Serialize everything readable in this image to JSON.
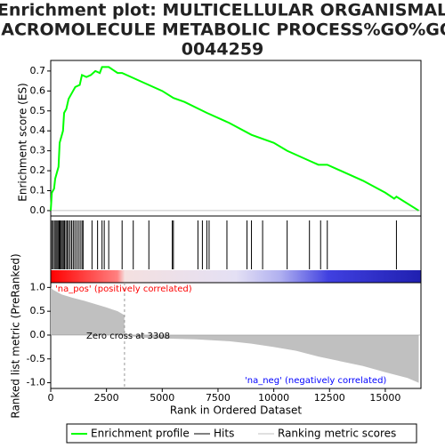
{
  "chart_data": {
    "type": "gsea",
    "title": [
      "Enrichment plot: MULTICELLULAR ORGANISMAL",
      "MACROMOLECULE METABOLIC PROCESS%GO%GO:",
      "0044259"
    ],
    "x_label": "Rank in Ordered Dataset",
    "y_label": "Enrichment score (ES)",
    "y2_label": "Ranked list metric (PreRanked)",
    "xlim": [
      0,
      16600
    ],
    "xticks": [
      0,
      2500,
      5000,
      7500,
      10000,
      12500,
      15000
    ],
    "ylim": [
      -0.027,
      0.753
    ],
    "yticks": [
      {
        "value": 0,
        "label": "0.0"
      },
      0.1,
      0.2,
      0.3,
      0.4,
      0.5,
      0.6,
      0.7
    ],
    "y2lim": [
      -1.12,
      1.1
    ],
    "y2ticks": [
      {
        "value": 1,
        "label": "1.0"
      },
      0.5,
      {
        "value": 0,
        "label": "0.0"
      },
      -0.5,
      {
        "value": -1,
        "label": "-1.0"
      }
    ],
    "series": [
      {
        "name": "Enrichment profile",
        "color": "#00ff00",
        "x": [
          0,
          50,
          150,
          200,
          300,
          350,
          400,
          500,
          550,
          600,
          700,
          800,
          950,
          1100,
          1300,
          1400,
          1600,
          1800,
          2000,
          2200,
          2300,
          2600,
          3000,
          3200,
          4000,
          5000,
          5500,
          6000,
          7000,
          8000,
          9000,
          10000,
          10600,
          11600,
          12000,
          12400,
          13000,
          14000,
          15000,
          15400,
          15500,
          16500
        ],
        "values": [
          0,
          0.09,
          0.11,
          0.16,
          0.2,
          0.22,
          0.34,
          0.38,
          0.4,
          0.49,
          0.51,
          0.56,
          0.59,
          0.62,
          0.63,
          0.68,
          0.67,
          0.68,
          0.7,
          0.69,
          0.72,
          0.72,
          0.69,
          0.69,
          0.65,
          0.6,
          0.565,
          0.545,
          0.49,
          0.44,
          0.38,
          0.34,
          0.3,
          0.25,
          0.23,
          0.23,
          0.2,
          0.15,
          0.09,
          0.06,
          0.07,
          0
        ]
      },
      {
        "name": "Hits",
        "color": "#000000",
        "x": [
          50,
          110,
          170,
          230,
          280,
          330,
          380,
          420,
          470,
          520,
          570,
          620,
          680,
          740,
          800,
          870,
          940,
          1010,
          1080,
          1160,
          1240,
          1320,
          1400,
          1450,
          1850,
          2100,
          2300,
          2400,
          2600,
          3200,
          3700,
          4400,
          5450,
          5500,
          6600,
          6800,
          7000,
          7100,
          7900,
          8800,
          9000,
          9500,
          10600,
          11600,
          12100,
          12400,
          15500
        ]
      },
      {
        "name": "Ranking metric scores",
        "color": "#c0c0c0",
        "x": [
          0,
          100,
          500,
          1000,
          1500,
          2000,
          2500,
          3000,
          3300,
          3308,
          4000,
          5000,
          6500,
          8000,
          9000,
          10000,
          11000,
          12000,
          13000,
          14000,
          15000,
          16000,
          16500
        ],
        "values": [
          1.0,
          0.95,
          0.85,
          0.78,
          0.72,
          0.65,
          0.58,
          0.5,
          0.42,
          0,
          -0.05,
          -0.07,
          -0.09,
          -0.13,
          -0.18,
          -0.25,
          -0.33,
          -0.45,
          -0.55,
          -0.65,
          -0.78,
          -0.9,
          -1.0
        ],
        "axis": "y2"
      }
    ],
    "zero_cross": 3308,
    "annotations": [
      {
        "text": "'na_pos' (positively correlated)",
        "color": "#ff0000"
      },
      {
        "text": "Zero cross at 3308",
        "color": "#000000"
      },
      {
        "text": "'na_neg' (negatively correlated)",
        "color": "#0000ff"
      }
    ]
  }
}
